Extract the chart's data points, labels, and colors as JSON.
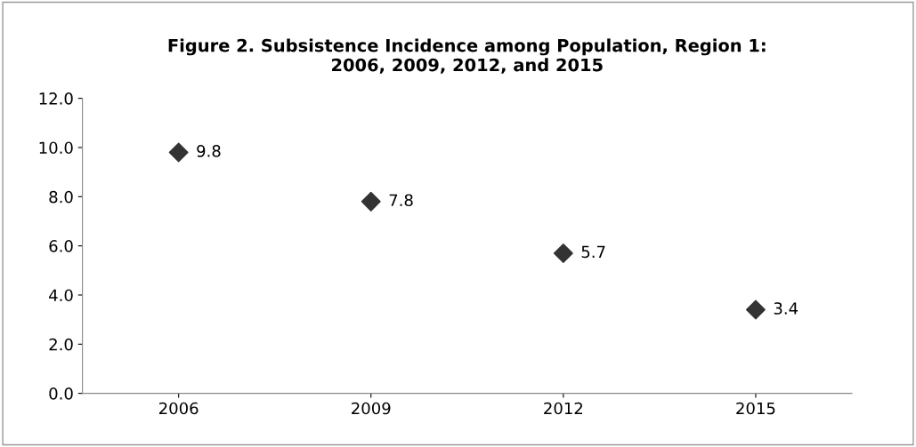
{
  "chart_data": {
    "type": "scatter",
    "title": "Figure 2. Subsistence Incidence among Population, Region 1:\n2006, 2009, 2012, and 2015",
    "categories": [
      "2006",
      "2009",
      "2012",
      "2015"
    ],
    "series": [
      {
        "color": "#333333",
        "values": [
          9.8,
          7.8,
          5.7,
          3.4
        ]
      }
    ],
    "marker": "diamond",
    "data_labels": true,
    "grid": false,
    "legend": false,
    "ylim": [
      0,
      12
    ],
    "yticks": [
      {
        "value": 0,
        "label": "0.0"
      },
      {
        "value": 2,
        "label": "2.0"
      },
      {
        "value": 4,
        "label": "4.0"
      },
      {
        "value": 6,
        "label": "6.0"
      },
      {
        "value": 8,
        "label": "8.0"
      },
      {
        "value": 10,
        "label": "10.0"
      },
      {
        "value": 12,
        "label": "12.0"
      }
    ]
  }
}
